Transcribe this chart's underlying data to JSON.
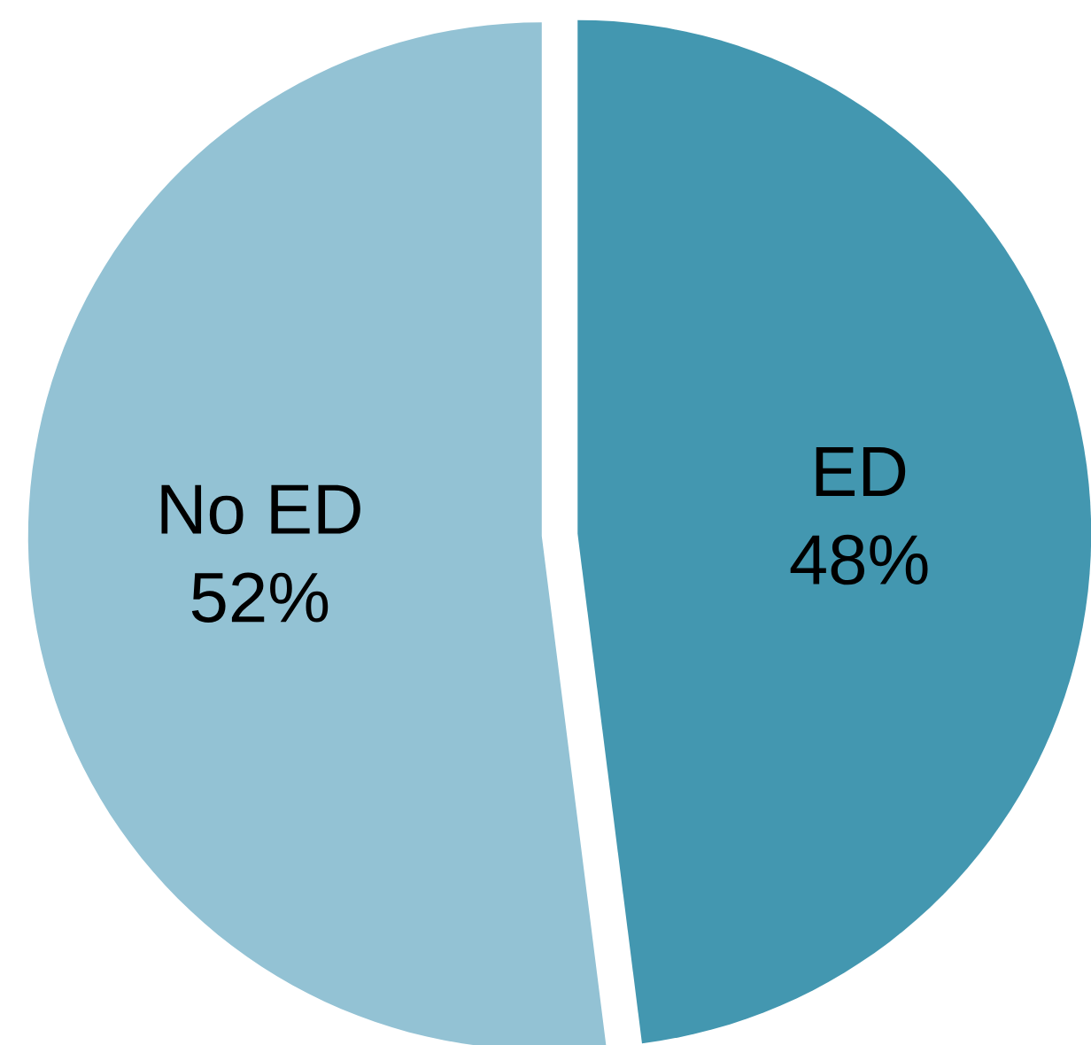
{
  "chart_data": {
    "type": "pie",
    "categories": [
      "ED",
      "No ED"
    ],
    "values": [
      48,
      52
    ],
    "value_labels": [
      "48%",
      "52%"
    ],
    "colors": [
      "#4397b0",
      "#93c2d4"
    ]
  }
}
